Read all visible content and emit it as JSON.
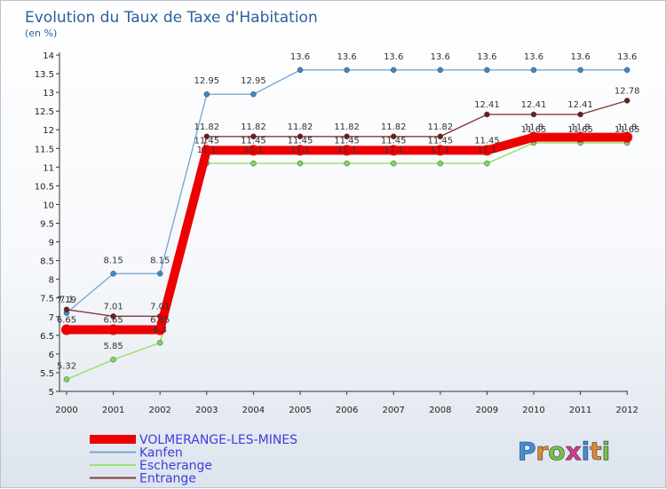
{
  "chart_data": {
    "type": "line",
    "title": "Evolution du Taux de Taxe d'Habitation",
    "subtitle": "(en %)",
    "xlabel": "",
    "ylabel": "",
    "ylim": [
      5,
      14
    ],
    "yticks": [
      "5",
      "5.5",
      "6",
      "6.5",
      "7",
      "7.5",
      "8",
      "8.5",
      "9",
      "9.5",
      "10",
      "10.5",
      "11",
      "11.5",
      "12",
      "12.5",
      "13",
      "13.5",
      "14"
    ],
    "categories": [
      "2000",
      "2001",
      "2002",
      "2003",
      "2004",
      "2005",
      "2006",
      "2007",
      "2008",
      "2009",
      "2010",
      "2011",
      "2012"
    ],
    "series": [
      {
        "name": "VOLMERANGE-LES-MINES",
        "color": "#ee0000",
        "marker": "#ee0000",
        "values": [
          6.65,
          6.65,
          6.65,
          11.45,
          11.45,
          11.45,
          11.45,
          11.45,
          11.45,
          11.45,
          11.8,
          11.8,
          11.8
        ],
        "labels": [
          "6.65",
          "6.65",
          "6.65",
          "11.45",
          "11.45",
          "11.45",
          "11.45",
          "11.45",
          "11.45",
          "11.45",
          "11.8",
          "11.8",
          "11.8"
        ]
      },
      {
        "name": "Kanfen",
        "color": "#79a8d8",
        "marker": "#3b87c9",
        "values": [
          7.1,
          8.15,
          8.15,
          12.95,
          12.95,
          13.6,
          13.6,
          13.6,
          13.6,
          13.6,
          13.6,
          13.6,
          13.6
        ],
        "labels": [
          "7.1",
          "8.15",
          "8.15",
          "12.95",
          "12.95",
          "13.6",
          "13.6",
          "13.6",
          "13.6",
          "13.6",
          "13.6",
          "13.6",
          "13.6"
        ]
      },
      {
        "name": "Escherange",
        "color": "#9fe07a",
        "marker": "#7ed957",
        "values": [
          5.32,
          5.85,
          6.3,
          11.1,
          11.1,
          11.1,
          11.1,
          11.1,
          11.1,
          11.1,
          11.65,
          11.65,
          11.65
        ],
        "labels": [
          "5.32",
          "5.85",
          "6.3",
          "11.1",
          "11.1",
          "11.1",
          "11.1",
          "11.1",
          "11.1",
          "11.1",
          "11.65",
          "11.65",
          "11.65"
        ]
      },
      {
        "name": "Entrange",
        "color": "#8a3a3a",
        "marker": "#6e1c1c",
        "values": [
          7.19,
          7.01,
          7.01,
          11.82,
          11.82,
          11.82,
          11.82,
          11.82,
          11.82,
          12.41,
          12.41,
          12.41,
          12.78
        ],
        "labels": [
          "7.19",
          "7.01",
          "7.01",
          "11.82",
          "11.82",
          "11.82",
          "11.82",
          "11.82",
          "11.82",
          "12.41",
          "12.41",
          "12.41",
          "12.78"
        ]
      }
    ],
    "legend_position": "bottom-left",
    "grid": false
  },
  "brand": {
    "text": "Proxiti",
    "letters": [
      "P",
      "r",
      "o",
      "x",
      "i",
      "t",
      "i"
    ],
    "colors": [
      "#3f8fd8",
      "#e8892c",
      "#7cc243",
      "#d93b86",
      "#3f8fd8",
      "#e8892c",
      "#7cc243"
    ]
  }
}
